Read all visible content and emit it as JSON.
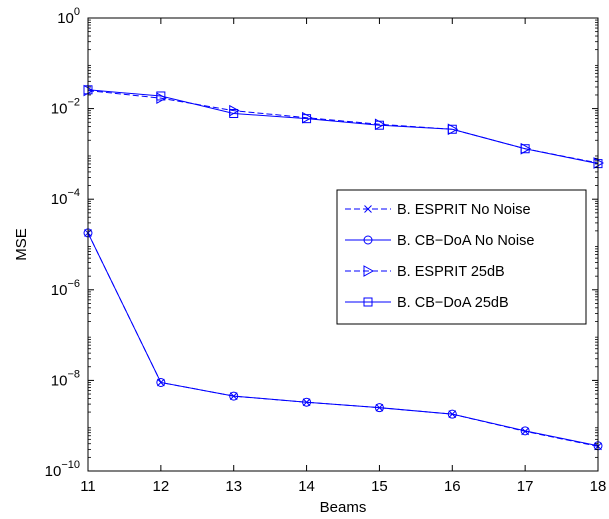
{
  "chart_data": {
    "type": "line",
    "xlabel": "Beams",
    "ylabel": "MSE",
    "x": [
      11,
      12,
      13,
      14,
      15,
      16,
      17,
      18
    ],
    "xlim": [
      11,
      18
    ],
    "ylim": [
      1e-10,
      1
    ],
    "yscale": "log",
    "xticks": [
      "11",
      "12",
      "13",
      "14",
      "15",
      "16",
      "17",
      "18"
    ],
    "yticks": [
      {
        "base": "10",
        "exp": "0"
      },
      {
        "base": "10",
        "exp": "−2"
      },
      {
        "base": "10",
        "exp": "−4"
      },
      {
        "base": "10",
        "exp": "−6"
      },
      {
        "base": "10",
        "exp": "−8"
      },
      {
        "base": "10",
        "exp": "−10"
      }
    ],
    "ytick_values": [
      1,
      0.01,
      0.0001,
      1e-06,
      1e-08,
      1e-10
    ],
    "grid": false,
    "legend_position": "center-right",
    "series": [
      {
        "name": "B. ESPRIT No Noise",
        "marker": "x",
        "linestyle": "dashed",
        "color": "#0000ff",
        "values": [
          1.8e-05,
          9e-09,
          4.5e-09,
          3.3e-09,
          2.5e-09,
          1.8e-09,
          7.5e-10,
          3.5e-10
        ]
      },
      {
        "name": "B. CB−DoA No Noise",
        "marker": "o",
        "linestyle": "solid",
        "color": "#0000ff",
        "values": [
          1.8e-05,
          9e-09,
          4.5e-09,
          3.3e-09,
          2.5e-09,
          1.8e-09,
          7.7e-10,
          3.6e-10
        ]
      },
      {
        "name": "B. ESPRIT 25dB",
        "marker": "triangle-right",
        "linestyle": "dashed",
        "color": "#0000ff",
        "values": [
          0.025,
          0.017,
          0.009,
          0.0063,
          0.0045,
          0.0035,
          0.0013,
          0.00063
        ]
      },
      {
        "name": "B. CB−DoA 25dB",
        "marker": "square",
        "linestyle": "solid",
        "color": "#0000ff",
        "values": [
          0.026,
          0.019,
          0.0078,
          0.006,
          0.0043,
          0.0035,
          0.0013,
          0.00061
        ]
      }
    ]
  }
}
